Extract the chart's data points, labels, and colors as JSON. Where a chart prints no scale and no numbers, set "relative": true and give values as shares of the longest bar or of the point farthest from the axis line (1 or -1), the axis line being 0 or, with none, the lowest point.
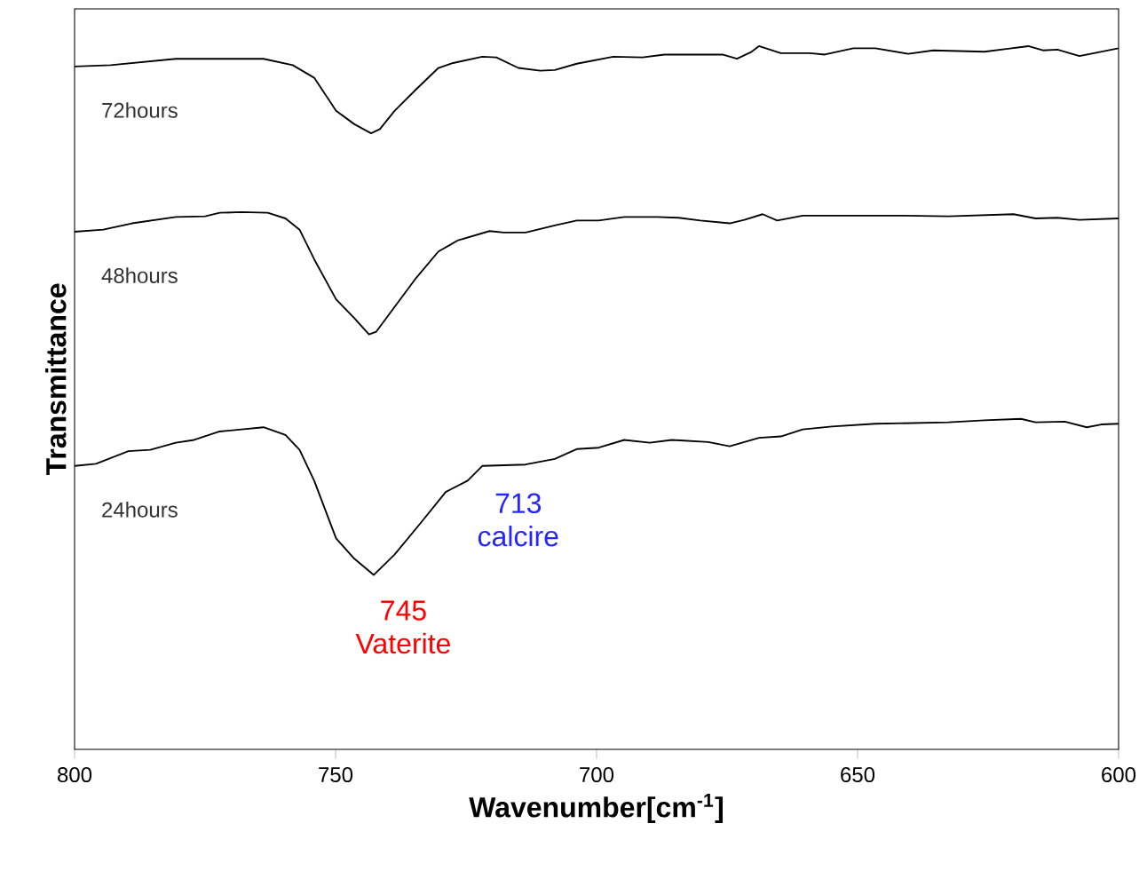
{
  "chart_data": {
    "type": "line",
    "relative": true,
    "xlabel": "Wavenumber[cm$^{-1}$]",
    "ylabel": "Transmittance",
    "xlim": [
      800,
      600
    ],
    "xticks": [
      800,
      750,
      700,
      650,
      600
    ],
    "legend": false,
    "grid": false,
    "marker": "none",
    "line_style": "solid",
    "series": [
      {
        "name": "72hours",
        "color": "#000000",
        "x": [
          800,
          793.1,
          780.6,
          772.2,
          763.8,
          758.2,
          754.1,
          749.9,
          746.4,
          743.2,
          741.5,
          738.7,
          734.5,
          730.3,
          727.5,
          721.9,
          719.2,
          715.0,
          710.8,
          708.0,
          703.8,
          696.8,
          691.2,
          687.0,
          675.9,
          673.1,
          670.3,
          668.9,
          666.8,
          664.7,
          659.1,
          656.3,
          650.8,
          646.6,
          640.3,
          635.5,
          625.7,
          621.5,
          617.3,
          614.5,
          611.7,
          607.5,
          604.7,
          600
        ],
        "values": [
          0.971,
          0.973,
          0.982,
          0.982,
          0.982,
          0.973,
          0.955,
          0.908,
          0.889,
          0.876,
          0.882,
          0.908,
          0.939,
          0.969,
          0.976,
          0.985,
          0.984,
          0.969,
          0.965,
          0.966,
          0.975,
          0.985,
          0.984,
          0.988,
          0.988,
          0.982,
          0.992,
          1.0,
          0.995,
          0.99,
          0.99,
          0.988,
          0.997,
          0.997,
          0.989,
          0.994,
          0.992,
          0.996,
          1.0,
          0.994,
          0.995,
          0.986,
          0.99,
          0.997
        ]
      },
      {
        "name": "48hours",
        "color": "#000000",
        "x": [
          800,
          794.5,
          789,
          780.6,
          775,
          772.2,
          768,
          763,
          759.6,
          756.9,
          754.1,
          749.9,
          746.4,
          743.6,
          742.2,
          738.7,
          734.5,
          730.3,
          726.5,
          720.5,
          717.8,
          713.6,
          708,
          703.8,
          699.6,
          694.7,
          688.4,
          684.3,
          680.1,
          674.5,
          671.7,
          668.2,
          665.4,
          660.5,
          641,
          632.6,
          620.1,
          615.9,
          611.7,
          607.5,
          600
        ],
        "values": [
          0.736,
          0.739,
          0.748,
          0.757,
          0.758,
          0.763,
          0.764,
          0.763,
          0.755,
          0.739,
          0.697,
          0.64,
          0.613,
          0.59,
          0.594,
          0.629,
          0.671,
          0.708,
          0.724,
          0.737,
          0.735,
          0.735,
          0.745,
          0.752,
          0.752,
          0.757,
          0.757,
          0.756,
          0.752,
          0.748,
          0.753,
          0.761,
          0.752,
          0.759,
          0.759,
          0.758,
          0.761,
          0.755,
          0.756,
          0.753,
          0.755
        ]
      },
      {
        "name": "24hours",
        "color": "#000000",
        "x": [
          800,
          795.9,
          789.7,
          785.5,
          780.6,
          777.1,
          772.2,
          768,
          763.8,
          759.6,
          756.9,
          754.1,
          749.9,
          746.4,
          742.7,
          738.7,
          733.8,
          728.9,
          724.7,
          721.9,
          713.6,
          708,
          703.8,
          699.6,
          694.7,
          689.8,
          685.6,
          678.6,
          674.5,
          668.9,
          664.7,
          660.5,
          654.9,
          646.6,
          632.6,
          625.7,
          618.7,
          615.9,
          610.3,
          606.1,
          603.3,
          600
        ],
        "values": [
          0.403,
          0.406,
          0.424,
          0.426,
          0.436,
          0.44,
          0.452,
          0.455,
          0.458,
          0.447,
          0.426,
          0.382,
          0.3,
          0.271,
          0.248,
          0.277,
          0.321,
          0.366,
          0.382,
          0.403,
          0.405,
          0.413,
          0.427,
          0.429,
          0.44,
          0.436,
          0.44,
          0.437,
          0.431,
          0.443,
          0.445,
          0.455,
          0.459,
          0.463,
          0.465,
          0.468,
          0.47,
          0.465,
          0.466,
          0.458,
          0.462,
          0.463
        ]
      }
    ],
    "annotations": [
      "745 Vaterite",
      "713 calcire"
    ]
  }
}
